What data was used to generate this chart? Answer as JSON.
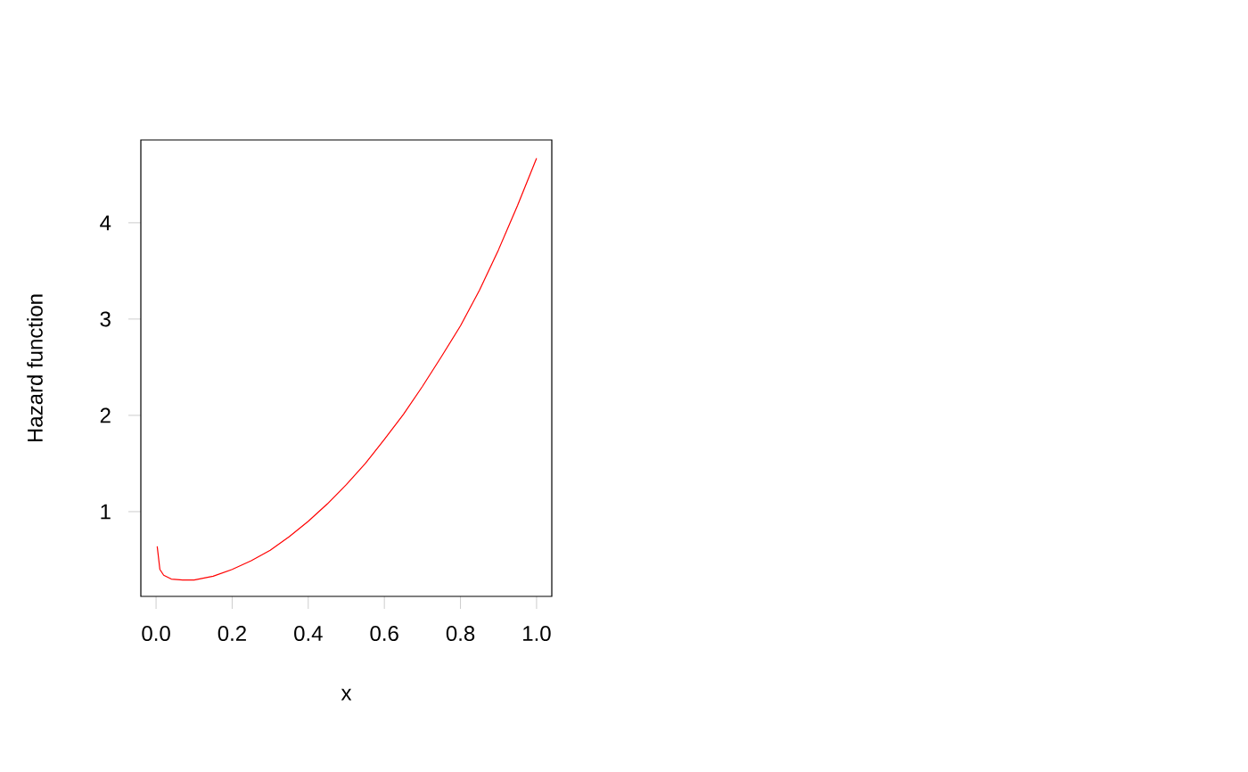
{
  "chart_data": {
    "type": "line",
    "xlabel": "x",
    "ylabel": "Hazard function",
    "x": [
      0.003,
      0.01,
      0.02,
      0.04,
      0.07,
      0.1,
      0.15,
      0.2,
      0.25,
      0.3,
      0.35,
      0.4,
      0.45,
      0.5,
      0.55,
      0.6,
      0.65,
      0.7,
      0.75,
      0.8,
      0.85,
      0.9,
      0.95,
      1.0
    ],
    "series": [
      {
        "color": "#ff0000",
        "values": [
          0.64,
          0.4,
          0.34,
          0.3,
          0.29,
          0.29,
          0.33,
          0.4,
          0.49,
          0.6,
          0.74,
          0.9,
          1.08,
          1.28,
          1.5,
          1.75,
          2.01,
          2.3,
          2.61,
          2.93,
          3.3,
          3.72,
          4.18,
          4.67
        ]
      }
    ],
    "xlim": [
      -0.04,
      1.04
    ],
    "ylim": [
      0.12,
      4.86
    ],
    "xticks": [
      {
        "value": 0,
        "label": "0.0"
      },
      0.2,
      0.4,
      0.6,
      0.8,
      {
        "value": 1,
        "label": "1.0"
      }
    ],
    "yticks": [
      1,
      2,
      3,
      4
    ],
    "grid": false,
    "marker": "none",
    "line_style": "solid"
  }
}
